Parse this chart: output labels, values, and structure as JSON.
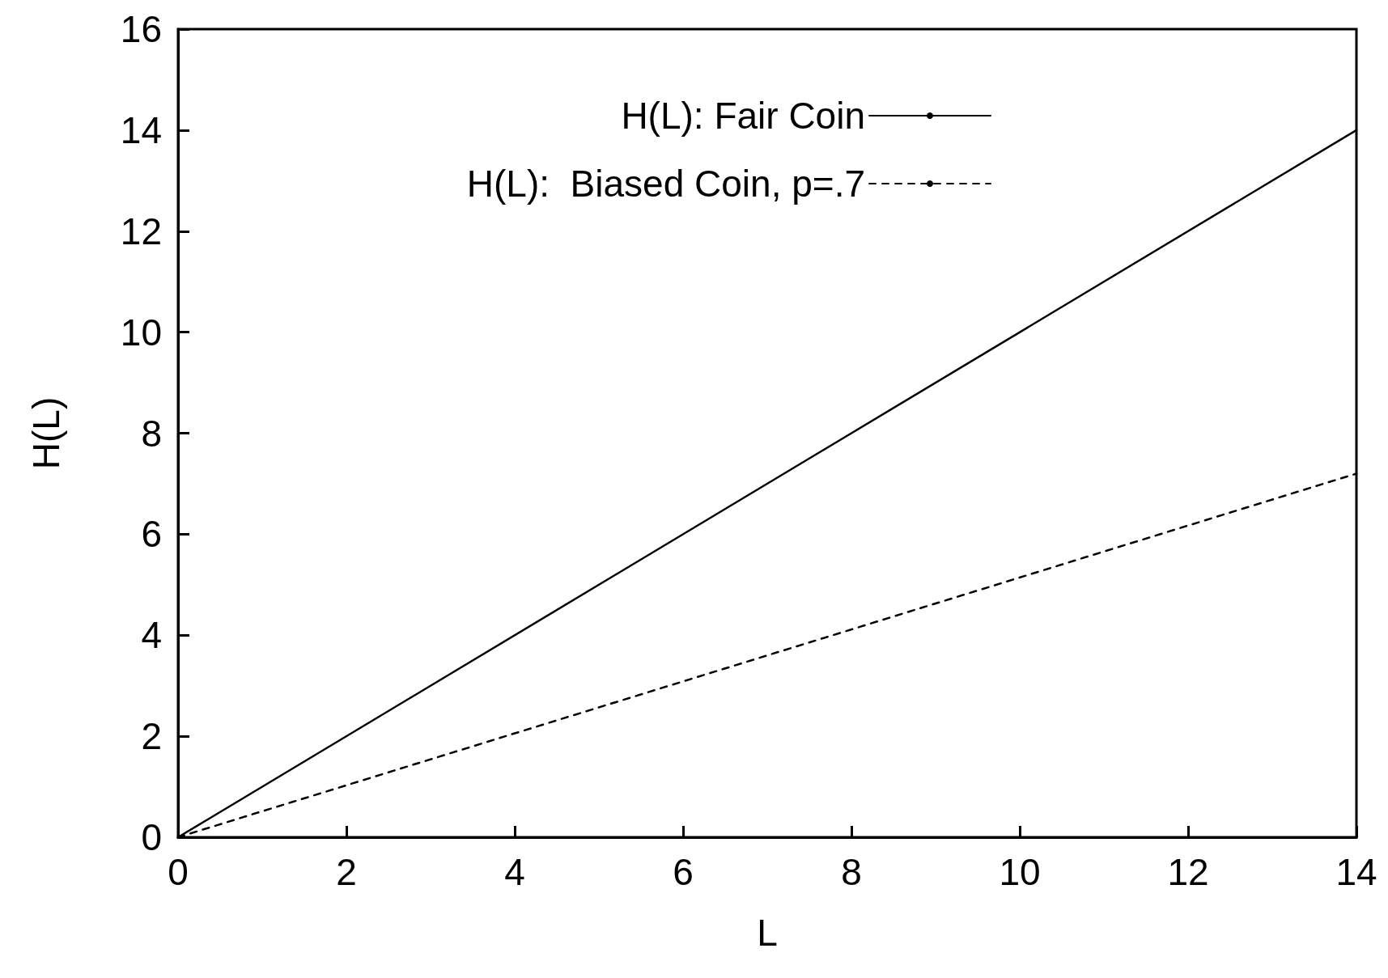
{
  "chart_data": {
    "type": "line",
    "xlabel": "L",
    "ylabel": "H(L)",
    "x": [
      0,
      14
    ],
    "series": [
      {
        "name": "H(L): Fair Coin",
        "color": "#000000",
        "values": [
          0,
          14
        ],
        "line_style": "solid"
      },
      {
        "name": "H(L):  Biased Coin, p=.7",
        "color": "#000000",
        "values": [
          0,
          7.2
        ],
        "line_style": "dashed"
      }
    ],
    "xlim": [
      0,
      14
    ],
    "xticks": [
      0,
      2,
      4,
      6,
      8,
      10,
      12,
      14
    ],
    "ylim": [
      0,
      16
    ],
    "yticks": [
      0,
      2,
      4,
      6,
      8,
      10,
      12,
      14,
      16
    ],
    "grid": false,
    "legend": "top right",
    "marker": "none"
  }
}
